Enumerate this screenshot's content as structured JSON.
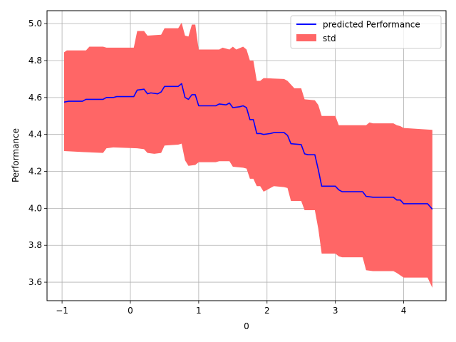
{
  "chart_data": {
    "type": "line",
    "xlabel": "0",
    "ylabel": "Performance",
    "xlim": [
      -1.22,
      4.62
    ],
    "ylim": [
      3.5,
      5.07
    ],
    "grid": true,
    "legend_position": "top-right",
    "xticks": [
      -1,
      0,
      1,
      2,
      3,
      4
    ],
    "xtick_labels": [
      "−1",
      "0",
      "1",
      "2",
      "3",
      "4"
    ],
    "yticks": [
      3.6,
      3.8,
      4.0,
      4.2,
      4.4,
      4.6,
      4.8,
      5.0
    ],
    "ytick_labels": [
      "3.6",
      "3.8",
      "4.0",
      "4.2",
      "4.4",
      "4.6",
      "4.8",
      "5.0"
    ],
    "colors": {
      "line": "#0000ff",
      "band": "#ff6666",
      "grid": "#b0b0b0"
    },
    "series": [
      {
        "name": "predicted Performance",
        "kind": "line",
        "points": [
          [
            -0.97,
            4.575
          ],
          [
            -0.9,
            4.58
          ],
          [
            -0.7,
            4.58
          ],
          [
            -0.65,
            4.59
          ],
          [
            -0.4,
            4.59
          ],
          [
            -0.35,
            4.6
          ],
          [
            -0.25,
            4.6
          ],
          [
            -0.2,
            4.605
          ],
          [
            0.05,
            4.605
          ],
          [
            0.1,
            4.64
          ],
          [
            0.2,
            4.645
          ],
          [
            0.25,
            4.62
          ],
          [
            0.3,
            4.625
          ],
          [
            0.4,
            4.62
          ],
          [
            0.45,
            4.63
          ],
          [
            0.5,
            4.66
          ],
          [
            0.7,
            4.66
          ],
          [
            0.75,
            4.675
          ],
          [
            0.8,
            4.6
          ],
          [
            0.85,
            4.59
          ],
          [
            0.9,
            4.615
          ],
          [
            0.95,
            4.615
          ],
          [
            1.0,
            4.555
          ],
          [
            1.25,
            4.555
          ],
          [
            1.3,
            4.565
          ],
          [
            1.4,
            4.56
          ],
          [
            1.45,
            4.57
          ],
          [
            1.5,
            4.545
          ],
          [
            1.6,
            4.55
          ],
          [
            1.65,
            4.555
          ],
          [
            1.7,
            4.545
          ],
          [
            1.75,
            4.48
          ],
          [
            1.8,
            4.48
          ],
          [
            1.85,
            4.405
          ],
          [
            1.9,
            4.405
          ],
          [
            1.95,
            4.4
          ],
          [
            2.05,
            4.405
          ],
          [
            2.1,
            4.41
          ],
          [
            2.25,
            4.41
          ],
          [
            2.3,
            4.395
          ],
          [
            2.35,
            4.35
          ],
          [
            2.5,
            4.345
          ],
          [
            2.55,
            4.295
          ],
          [
            2.6,
            4.29
          ],
          [
            2.7,
            4.29
          ],
          [
            2.75,
            4.21
          ],
          [
            2.8,
            4.12
          ],
          [
            3.0,
            4.12
          ],
          [
            3.05,
            4.1
          ],
          [
            3.1,
            4.09
          ],
          [
            3.4,
            4.09
          ],
          [
            3.45,
            4.065
          ],
          [
            3.55,
            4.06
          ],
          [
            3.85,
            4.06
          ],
          [
            3.9,
            4.045
          ],
          [
            3.95,
            4.045
          ],
          [
            4.0,
            4.025
          ],
          [
            4.35,
            4.025
          ],
          [
            4.42,
            3.995
          ]
        ]
      },
      {
        "name": "std",
        "kind": "band",
        "upper": [
          [
            -0.97,
            4.845
          ],
          [
            -0.93,
            4.855
          ],
          [
            -0.65,
            4.855
          ],
          [
            -0.6,
            4.875
          ],
          [
            -0.4,
            4.875
          ],
          [
            -0.35,
            4.87
          ],
          [
            0.05,
            4.87
          ],
          [
            0.1,
            4.96
          ],
          [
            0.2,
            4.96
          ],
          [
            0.25,
            4.935
          ],
          [
            0.45,
            4.94
          ],
          [
            0.5,
            4.975
          ],
          [
            0.7,
            4.975
          ],
          [
            0.75,
            5.005
          ],
          [
            0.8,
            4.935
          ],
          [
            0.85,
            4.93
          ],
          [
            0.9,
            4.995
          ],
          [
            0.95,
            4.995
          ],
          [
            1.0,
            4.86
          ],
          [
            1.3,
            4.86
          ],
          [
            1.35,
            4.87
          ],
          [
            1.45,
            4.86
          ],
          [
            1.5,
            4.875
          ],
          [
            1.55,
            4.86
          ],
          [
            1.65,
            4.875
          ],
          [
            1.7,
            4.86
          ],
          [
            1.75,
            4.8
          ],
          [
            1.8,
            4.8
          ],
          [
            1.85,
            4.69
          ],
          [
            1.9,
            4.69
          ],
          [
            1.95,
            4.705
          ],
          [
            2.25,
            4.7
          ],
          [
            2.3,
            4.69
          ],
          [
            2.4,
            4.65
          ],
          [
            2.5,
            4.65
          ],
          [
            2.55,
            4.59
          ],
          [
            2.7,
            4.585
          ],
          [
            2.75,
            4.56
          ],
          [
            2.8,
            4.5
          ],
          [
            3.0,
            4.5
          ],
          [
            3.05,
            4.45
          ],
          [
            3.45,
            4.45
          ],
          [
            3.5,
            4.465
          ],
          [
            3.55,
            4.46
          ],
          [
            3.85,
            4.46
          ],
          [
            3.9,
            4.45
          ],
          [
            3.95,
            4.445
          ],
          [
            4.0,
            4.435
          ],
          [
            4.42,
            4.425
          ]
        ],
        "lower": [
          [
            -0.97,
            4.31
          ],
          [
            -0.7,
            4.305
          ],
          [
            -0.4,
            4.3
          ],
          [
            -0.35,
            4.325
          ],
          [
            -0.25,
            4.33
          ],
          [
            0.1,
            4.325
          ],
          [
            0.2,
            4.32
          ],
          [
            0.25,
            4.3
          ],
          [
            0.35,
            4.295
          ],
          [
            0.45,
            4.3
          ],
          [
            0.5,
            4.34
          ],
          [
            0.7,
            4.345
          ],
          [
            0.75,
            4.35
          ],
          [
            0.8,
            4.26
          ],
          [
            0.85,
            4.23
          ],
          [
            0.95,
            4.235
          ],
          [
            1.0,
            4.25
          ],
          [
            1.25,
            4.25
          ],
          [
            1.3,
            4.255
          ],
          [
            1.45,
            4.255
          ],
          [
            1.5,
            4.225
          ],
          [
            1.65,
            4.22
          ],
          [
            1.7,
            4.215
          ],
          [
            1.75,
            4.16
          ],
          [
            1.8,
            4.16
          ],
          [
            1.85,
            4.12
          ],
          [
            1.9,
            4.12
          ],
          [
            1.95,
            4.09
          ],
          [
            2.0,
            4.1
          ],
          [
            2.1,
            4.12
          ],
          [
            2.25,
            4.115
          ],
          [
            2.3,
            4.11
          ],
          [
            2.35,
            4.04
          ],
          [
            2.5,
            4.04
          ],
          [
            2.55,
            3.99
          ],
          [
            2.7,
            3.99
          ],
          [
            2.75,
            3.89
          ],
          [
            2.8,
            3.755
          ],
          [
            3.0,
            3.755
          ],
          [
            3.05,
            3.74
          ],
          [
            3.1,
            3.735
          ],
          [
            3.4,
            3.735
          ],
          [
            3.45,
            3.665
          ],
          [
            3.55,
            3.66
          ],
          [
            3.85,
            3.66
          ],
          [
            3.9,
            3.65
          ],
          [
            4.0,
            3.625
          ],
          [
            4.35,
            3.625
          ],
          [
            4.42,
            3.57
          ]
        ]
      }
    ]
  }
}
